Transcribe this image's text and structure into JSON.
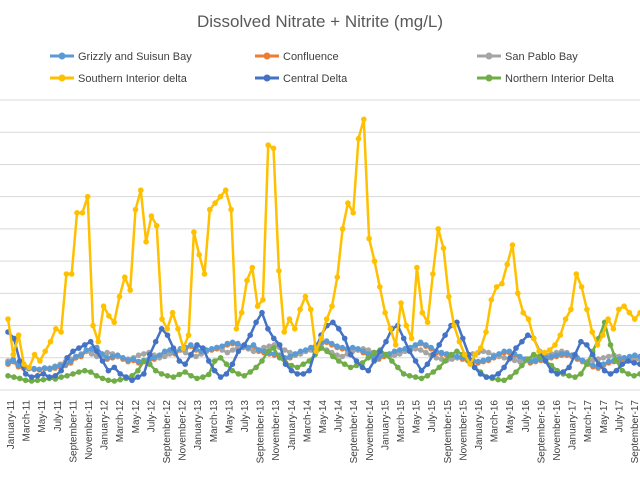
{
  "chart_data": {
    "type": "line",
    "title": "Dissolved Nitrate + Nitrite (mg/L)",
    "xlabel": "",
    "ylabel": "",
    "grid": true,
    "legend_position": "top",
    "x_labels": [
      "January-11",
      "March-11",
      "May-11",
      "July-11",
      "September-11",
      "November-11",
      "January-12",
      "March-12",
      "May-12",
      "July-12",
      "September-12",
      "November-12",
      "January-13",
      "March-13",
      "May-13",
      "July-13",
      "September-13",
      "November-13",
      "January-14",
      "March-14",
      "May-14",
      "July-14",
      "September-14",
      "November-14",
      "January-15",
      "March-15",
      "May-15",
      "July-15",
      "September-15",
      "November-15",
      "January-16",
      "March-16",
      "May-16",
      "July-16",
      "September-16",
      "November-16",
      "January-17",
      "March-17",
      "May-17",
      "July-17",
      "September-17"
    ],
    "series": [
      {
        "name": "Grizzly and Suisun Bay",
        "color": "#5b9bd5",
        "values": [
          0.42,
          0.46,
          0.38,
          0.36,
          0.34,
          0.33,
          0.32,
          0.34,
          0.33,
          0.36,
          0.38,
          0.4,
          0.44,
          0.52,
          0.54,
          0.62,
          0.64,
          0.66,
          0.56,
          0.5,
          0.52,
          0.54,
          0.5,
          0.46,
          0.48,
          0.44,
          0.46,
          0.48,
          0.5,
          0.54,
          0.6,
          0.62,
          0.58,
          0.64,
          0.66,
          0.7,
          0.64,
          0.6,
          0.62,
          0.64,
          0.66,
          0.68,
          0.72,
          0.74,
          0.72,
          0.68,
          0.66,
          0.7,
          0.62,
          0.6,
          0.58,
          0.56,
          0.54,
          0.5,
          0.52,
          0.56,
          0.6,
          0.62,
          0.66,
          0.7,
          0.74,
          0.76,
          0.72,
          0.68,
          0.66,
          0.64,
          0.66,
          0.64,
          0.6,
          0.56,
          0.52,
          0.5,
          0.54,
          0.56,
          0.6,
          0.62,
          0.64,
          0.66,
          0.7,
          0.74,
          0.7,
          0.66,
          0.6,
          0.58,
          0.56,
          0.54,
          0.52,
          0.5,
          0.48,
          0.46,
          0.44,
          0.46,
          0.48,
          0.52,
          0.56,
          0.6,
          0.6,
          0.56,
          0.52,
          0.48,
          0.44,
          0.46,
          0.48,
          0.5,
          0.52,
          0.54,
          0.56,
          0.56,
          0.54,
          0.5,
          0.46,
          0.42,
          0.38,
          0.36,
          0.4,
          0.44,
          0.46,
          0.48,
          0.5,
          0.52,
          0.54,
          0.52
        ]
      },
      {
        "name": "Confluence",
        "color": "#ed7d31",
        "values": [
          0.4,
          0.44,
          0.36,
          0.34,
          0.33,
          0.32,
          0.31,
          0.33,
          0.32,
          0.34,
          0.36,
          0.38,
          0.42,
          0.5,
          0.52,
          0.6,
          0.62,
          0.64,
          0.54,
          0.48,
          0.5,
          0.52,
          0.48,
          0.44,
          0.46,
          0.42,
          0.44,
          0.46,
          0.48,
          0.52,
          0.58,
          0.6,
          0.56,
          0.62,
          0.64,
          0.68,
          0.62,
          0.58,
          0.6,
          0.62,
          0.64,
          0.66,
          0.7,
          0.72,
          0.7,
          0.66,
          0.64,
          0.68,
          0.6,
          0.58,
          0.56,
          0.54,
          0.52,
          0.48,
          0.5,
          0.54,
          0.58,
          0.6,
          0.64,
          0.68,
          0.72,
          0.74,
          0.7,
          0.66,
          0.64,
          0.62,
          0.64,
          0.62,
          0.58,
          0.54,
          0.5,
          0.48,
          0.52,
          0.54,
          0.58,
          0.6,
          0.62,
          0.64,
          0.68,
          0.72,
          0.68,
          0.64,
          0.58,
          0.56,
          0.54,
          0.52,
          0.5,
          0.48,
          0.46,
          0.44,
          0.42,
          0.44,
          0.46,
          0.5,
          0.54,
          0.58,
          0.58,
          0.54,
          0.5,
          0.46,
          0.42,
          0.44,
          0.46,
          0.48,
          0.5,
          0.52,
          0.54,
          0.54,
          0.52,
          0.48,
          0.44,
          0.4,
          0.36,
          0.34,
          0.38,
          0.42,
          0.44,
          0.46,
          0.48,
          0.5,
          0.52,
          0.5
        ]
      },
      {
        "name": "San Pablo Bay",
        "color": "#a5a5a5",
        "values": [
          0.45,
          0.48,
          0.4,
          0.36,
          0.34,
          0.33,
          0.32,
          0.34,
          0.34,
          0.37,
          0.4,
          0.44,
          0.48,
          0.52,
          0.56,
          0.6,
          0.56,
          0.52,
          0.54,
          0.58,
          0.56,
          0.52,
          0.5,
          0.48,
          0.5,
          0.54,
          0.56,
          0.58,
          0.54,
          0.5,
          0.52,
          0.56,
          0.6,
          0.62,
          0.58,
          0.54,
          0.52,
          0.56,
          0.6,
          0.64,
          0.66,
          0.62,
          0.58,
          0.62,
          0.66,
          0.68,
          0.64,
          0.6,
          0.62,
          0.66,
          0.68,
          0.7,
          0.66,
          0.62,
          0.58,
          0.54,
          0.56,
          0.6,
          0.62,
          0.64,
          0.66,
          0.62,
          0.58,
          0.54,
          0.52,
          0.56,
          0.6,
          0.62,
          0.64,
          0.62,
          0.58,
          0.56,
          0.54,
          0.52,
          0.54,
          0.56,
          0.6,
          0.62,
          0.64,
          0.62,
          0.58,
          0.54,
          0.5,
          0.48,
          0.46,
          0.48,
          0.5,
          0.52,
          0.54,
          0.56,
          0.58,
          0.6,
          0.58,
          0.54,
          0.52,
          0.5,
          0.48,
          0.46,
          0.44,
          0.46,
          0.48,
          0.5,
          0.52,
          0.54,
          0.56,
          0.58,
          0.6,
          0.58,
          0.54,
          0.5,
          0.46,
          0.44,
          0.46,
          0.48,
          0.5,
          0.52,
          0.54,
          0.52,
          0.5,
          0.48,
          0.46,
          0.48
        ]
      },
      {
        "name": "Southern Interior delta",
        "color": "#ffc000",
        "values": [
          1.1,
          0.55,
          0.85,
          0.4,
          0.35,
          0.55,
          0.45,
          0.6,
          0.75,
          0.95,
          0.9,
          1.8,
          1.8,
          2.75,
          2.75,
          3.0,
          1.0,
          0.75,
          1.3,
          1.15,
          1.05,
          1.45,
          1.75,
          1.55,
          2.8,
          3.1,
          2.3,
          2.7,
          2.55,
          1.1,
          0.95,
          1.2,
          0.95,
          0.65,
          0.85,
          2.45,
          2.1,
          1.8,
          2.8,
          2.9,
          3.0,
          3.1,
          2.8,
          0.95,
          1.2,
          1.7,
          1.9,
          1.3,
          1.4,
          3.8,
          3.75,
          1.85,
          0.9,
          1.1,
          0.95,
          1.25,
          1.45,
          1.25,
          0.6,
          0.8,
          1.1,
          1.3,
          1.75,
          2.5,
          2.9,
          2.75,
          3.9,
          4.2,
          2.35,
          2.0,
          1.6,
          1.2,
          0.95,
          0.7,
          1.35,
          1.0,
          0.8,
          1.9,
          1.2,
          1.05,
          1.8,
          2.5,
          2.2,
          1.45,
          1.0,
          0.75,
          0.55,
          0.4,
          0.55,
          0.65,
          0.9,
          1.4,
          1.6,
          1.65,
          1.95,
          2.25,
          1.5,
          1.2,
          1.1,
          0.8,
          0.6,
          0.58,
          0.62,
          0.7,
          0.85,
          1.1,
          1.25,
          1.8,
          1.6,
          1.25,
          0.9,
          0.7,
          0.85,
          1.1,
          0.95,
          1.25,
          1.3,
          1.2,
          1.1,
          1.2
        ]
      },
      {
        "name": "Central Delta",
        "color": "#4472c4",
        "values": [
          0.9,
          0.8,
          0.45,
          0.25,
          0.2,
          0.22,
          0.25,
          0.2,
          0.22,
          0.3,
          0.5,
          0.6,
          0.65,
          0.7,
          0.75,
          0.6,
          0.45,
          0.3,
          0.35,
          0.25,
          0.2,
          0.15,
          0.2,
          0.25,
          0.55,
          0.75,
          0.95,
          0.85,
          0.65,
          0.45,
          0.4,
          0.55,
          0.7,
          0.65,
          0.45,
          0.3,
          0.2,
          0.25,
          0.4,
          0.6,
          0.7,
          0.85,
          1.05,
          1.2,
          0.95,
          0.8,
          0.7,
          0.4,
          0.3,
          0.25,
          0.25,
          0.3,
          0.6,
          0.85,
          1.0,
          1.05,
          0.95,
          0.8,
          0.55,
          0.45,
          0.35,
          0.3,
          0.45,
          0.6,
          0.75,
          0.95,
          1.0,
          0.8,
          0.6,
          0.45,
          0.3,
          0.4,
          0.55,
          0.7,
          0.85,
          1.0,
          1.05,
          0.8,
          0.55,
          0.35,
          0.25,
          0.2,
          0.2,
          0.25,
          0.35,
          0.5,
          0.65,
          0.75,
          0.85,
          0.8,
          0.6,
          0.45,
          0.3,
          0.25,
          0.28,
          0.35,
          0.55,
          0.75,
          0.7,
          0.55,
          0.4,
          0.3,
          0.25,
          0.3,
          0.4,
          0.45,
          0.42,
          0.4
        ]
      },
      {
        "name": "Northern Interior Delta",
        "color": "#70ad47",
        "values": [
          0.22,
          0.2,
          0.18,
          0.15,
          0.14,
          0.15,
          0.16,
          0.18,
          0.17,
          0.2,
          0.22,
          0.25,
          0.28,
          0.3,
          0.28,
          0.22,
          0.18,
          0.15,
          0.14,
          0.16,
          0.18,
          0.22,
          0.3,
          0.45,
          0.4,
          0.3,
          0.25,
          0.22,
          0.2,
          0.24,
          0.28,
          0.22,
          0.18,
          0.2,
          0.24,
          0.45,
          0.5,
          0.4,
          0.3,
          0.25,
          0.22,
          0.28,
          0.35,
          0.45,
          0.6,
          0.65,
          0.5,
          0.42,
          0.38,
          0.35,
          0.4,
          0.45,
          0.55,
          0.65,
          0.6,
          0.52,
          0.45,
          0.4,
          0.35,
          0.38,
          0.42,
          0.5,
          0.58,
          0.62,
          0.55,
          0.45,
          0.35,
          0.25,
          0.22,
          0.2,
          0.18,
          0.22,
          0.28,
          0.35,
          0.45,
          0.55,
          0.6,
          0.55,
          0.45,
          0.35,
          0.28,
          0.2,
          0.18,
          0.16,
          0.15,
          0.2,
          0.28,
          0.38,
          0.48,
          0.55,
          0.52,
          0.45,
          0.38,
          0.3,
          0.25,
          0.22,
          0.2,
          0.25,
          0.4,
          0.6,
          0.8,
          1.05,
          0.7,
          0.45,
          0.3,
          0.25,
          0.22,
          0.25
        ]
      }
    ],
    "ylim": [
      0,
      4.5
    ]
  }
}
